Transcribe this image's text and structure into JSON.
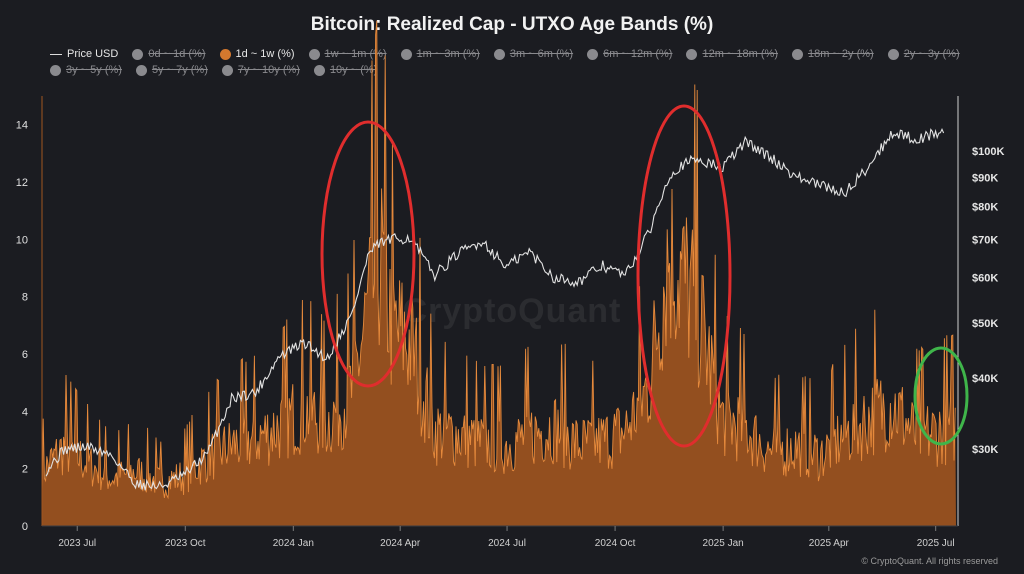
{
  "chart_data": {
    "type": "area",
    "title": "Bitcoin: Realized Cap - UTXO Age Bands (%)",
    "x_ticks": [
      "2023 Jul",
      "2023 Oct",
      "2024 Jan",
      "2024 Apr",
      "2024 Jul",
      "2024 Oct",
      "2025 Jan",
      "2025 Apr",
      "2025 Jul"
    ],
    "x_range": [
      "2023-06-01",
      "2025-07-20"
    ],
    "y_left": {
      "ticks": [
        0,
        2,
        4,
        6,
        8,
        10,
        12,
        14
      ],
      "range": [
        0,
        15
      ]
    },
    "y_right": {
      "scale": "log",
      "ticks": [
        "$30K",
        "$40K",
        "$50K",
        "$60K",
        "$70K",
        "$80K",
        "$90K",
        "$100K"
      ],
      "tick_values": [
        30000,
        40000,
        50000,
        60000,
        70000,
        80000,
        90000,
        100000
      ],
      "range": [
        22000,
        125000
      ]
    },
    "legend": [
      {
        "name": "Price USD",
        "active": true,
        "color": "#dcdcdc",
        "kind": "line"
      },
      {
        "name": "0d ~ 1d (%)",
        "active": false,
        "color": "#8a8a8e"
      },
      {
        "name": "1d ~ 1w (%)",
        "active": true,
        "color": "#d4782e"
      },
      {
        "name": "1w ~ 1m (%)",
        "active": false,
        "color": "#8a8a8e"
      },
      {
        "name": "1m ~ 3m (%)",
        "active": false,
        "color": "#8a8a8e"
      },
      {
        "name": "3m ~ 6m (%)",
        "active": false,
        "color": "#8a8a8e"
      },
      {
        "name": "6m ~ 12m (%)",
        "active": false,
        "color": "#8a8a8e"
      },
      {
        "name": "12m ~ 18m (%)",
        "active": false,
        "color": "#8a8a8e"
      },
      {
        "name": "18m ~ 2y (%)",
        "active": false,
        "color": "#8a8a8e"
      },
      {
        "name": "2y ~ 3y (%)",
        "active": false,
        "color": "#8a8a8e"
      },
      {
        "name": "3y ~ 5y (%)",
        "active": false,
        "color": "#8a8a8e"
      },
      {
        "name": "5y ~ 7y (%)",
        "active": false,
        "color": "#8a8a8e"
      },
      {
        "name": "7y ~ 10y (%)",
        "active": false,
        "color": "#8a8a8e"
      },
      {
        "name": "10y ~ (%)",
        "active": false,
        "color": "#8a8a8e"
      }
    ],
    "series": [
      {
        "name": "1d ~ 1w (%)",
        "axis": "left",
        "color": "#d4782e",
        "points": [
          [
            "2023-06-01",
            2.6
          ],
          [
            "2023-06-20",
            3.8
          ],
          [
            "2023-07-10",
            3.0
          ],
          [
            "2023-07-30",
            2.3
          ],
          [
            "2023-08-20",
            2.6
          ],
          [
            "2023-09-10",
            2.1
          ],
          [
            "2023-09-30",
            2.4
          ],
          [
            "2023-10-20",
            3.3
          ],
          [
            "2023-11-10",
            3.9
          ],
          [
            "2023-11-30",
            4.2
          ],
          [
            "2023-12-20",
            4.8
          ],
          [
            "2024-01-10",
            5.6
          ],
          [
            "2024-01-30",
            5.0
          ],
          [
            "2024-02-20",
            6.5
          ],
          [
            "2024-03-05",
            10.5
          ],
          [
            "2024-03-15",
            13.0
          ],
          [
            "2024-03-25",
            9.5
          ],
          [
            "2024-04-10",
            8.8
          ],
          [
            "2024-04-30",
            4.6
          ],
          [
            "2024-05-20",
            4.4
          ],
          [
            "2024-06-10",
            4.0
          ],
          [
            "2024-06-30",
            3.9
          ],
          [
            "2024-07-20",
            4.4
          ],
          [
            "2024-08-10",
            4.8
          ],
          [
            "2024-08-31",
            3.9
          ],
          [
            "2024-09-20",
            4.1
          ],
          [
            "2024-10-10",
            4.6
          ],
          [
            "2024-10-30",
            6.8
          ],
          [
            "2024-11-15",
            13.2
          ],
          [
            "2024-11-25",
            12.3
          ],
          [
            "2024-12-10",
            10.5
          ],
          [
            "2024-12-31",
            5.2
          ],
          [
            "2025-01-20",
            4.7
          ],
          [
            "2025-02-10",
            3.6
          ],
          [
            "2025-03-05",
            3.8
          ],
          [
            "2025-03-25",
            3.4
          ],
          [
            "2025-04-15",
            4.4
          ],
          [
            "2025-05-05",
            5.2
          ],
          [
            "2025-05-25",
            5.9
          ],
          [
            "2025-06-15",
            4.3
          ],
          [
            "2025-07-05",
            4.6
          ],
          [
            "2025-07-20",
            4.8
          ]
        ]
      },
      {
        "name": "Price USD",
        "axis": "right",
        "color": "#dcdcdc",
        "points": [
          [
            "2023-06-01",
            27000
          ],
          [
            "2023-06-20",
            30000
          ],
          [
            "2023-07-10",
            30300
          ],
          [
            "2023-07-30",
            29300
          ],
          [
            "2023-08-20",
            26100
          ],
          [
            "2023-09-10",
            25800
          ],
          [
            "2023-09-30",
            27000
          ],
          [
            "2023-10-20",
            29500
          ],
          [
            "2023-11-10",
            37000
          ],
          [
            "2023-11-30",
            37700
          ],
          [
            "2023-12-20",
            43600
          ],
          [
            "2024-01-10",
            46100
          ],
          [
            "2024-01-30",
            43300
          ],
          [
            "2024-02-20",
            51800
          ],
          [
            "2024-03-05",
            66000
          ],
          [
            "2024-03-15",
            69000
          ],
          [
            "2024-03-25",
            70000
          ],
          [
            "2024-04-10",
            70500
          ],
          [
            "2024-04-30",
            60600
          ],
          [
            "2024-05-20",
            66000
          ],
          [
            "2024-06-10",
            69600
          ],
          [
            "2024-06-30",
            62700
          ],
          [
            "2024-07-20",
            66700
          ],
          [
            "2024-08-10",
            60000
          ],
          [
            "2024-08-31",
            59000
          ],
          [
            "2024-09-20",
            63000
          ],
          [
            "2024-10-10",
            60600
          ],
          [
            "2024-10-30",
            72000
          ],
          [
            "2024-11-15",
            90000
          ],
          [
            "2024-11-25",
            94000
          ],
          [
            "2024-12-10",
            97000
          ],
          [
            "2024-12-31",
            93400
          ],
          [
            "2025-01-20",
            104000
          ],
          [
            "2025-02-10",
            97600
          ],
          [
            "2025-03-05",
            90000
          ],
          [
            "2025-03-25",
            87000
          ],
          [
            "2025-04-15",
            84500
          ],
          [
            "2025-05-05",
            94300
          ],
          [
            "2025-05-25",
            107800
          ],
          [
            "2025-06-15",
            105000
          ],
          [
            "2025-07-05",
            108000
          ],
          [
            "2025-07-20",
            118000
          ]
        ]
      }
    ],
    "annotations": [
      {
        "shape": "ellipse",
        "color": "#e02d2d",
        "around": "2024-03 peak"
      },
      {
        "shape": "ellipse",
        "color": "#e02d2d",
        "around": "2024-11 peak"
      },
      {
        "shape": "ellipse",
        "color": "#3fb54a",
        "around": "2025-07 current"
      }
    ]
  },
  "watermark": "CryptoQuant",
  "footer": "© CryptoQuant. All rights reserved"
}
